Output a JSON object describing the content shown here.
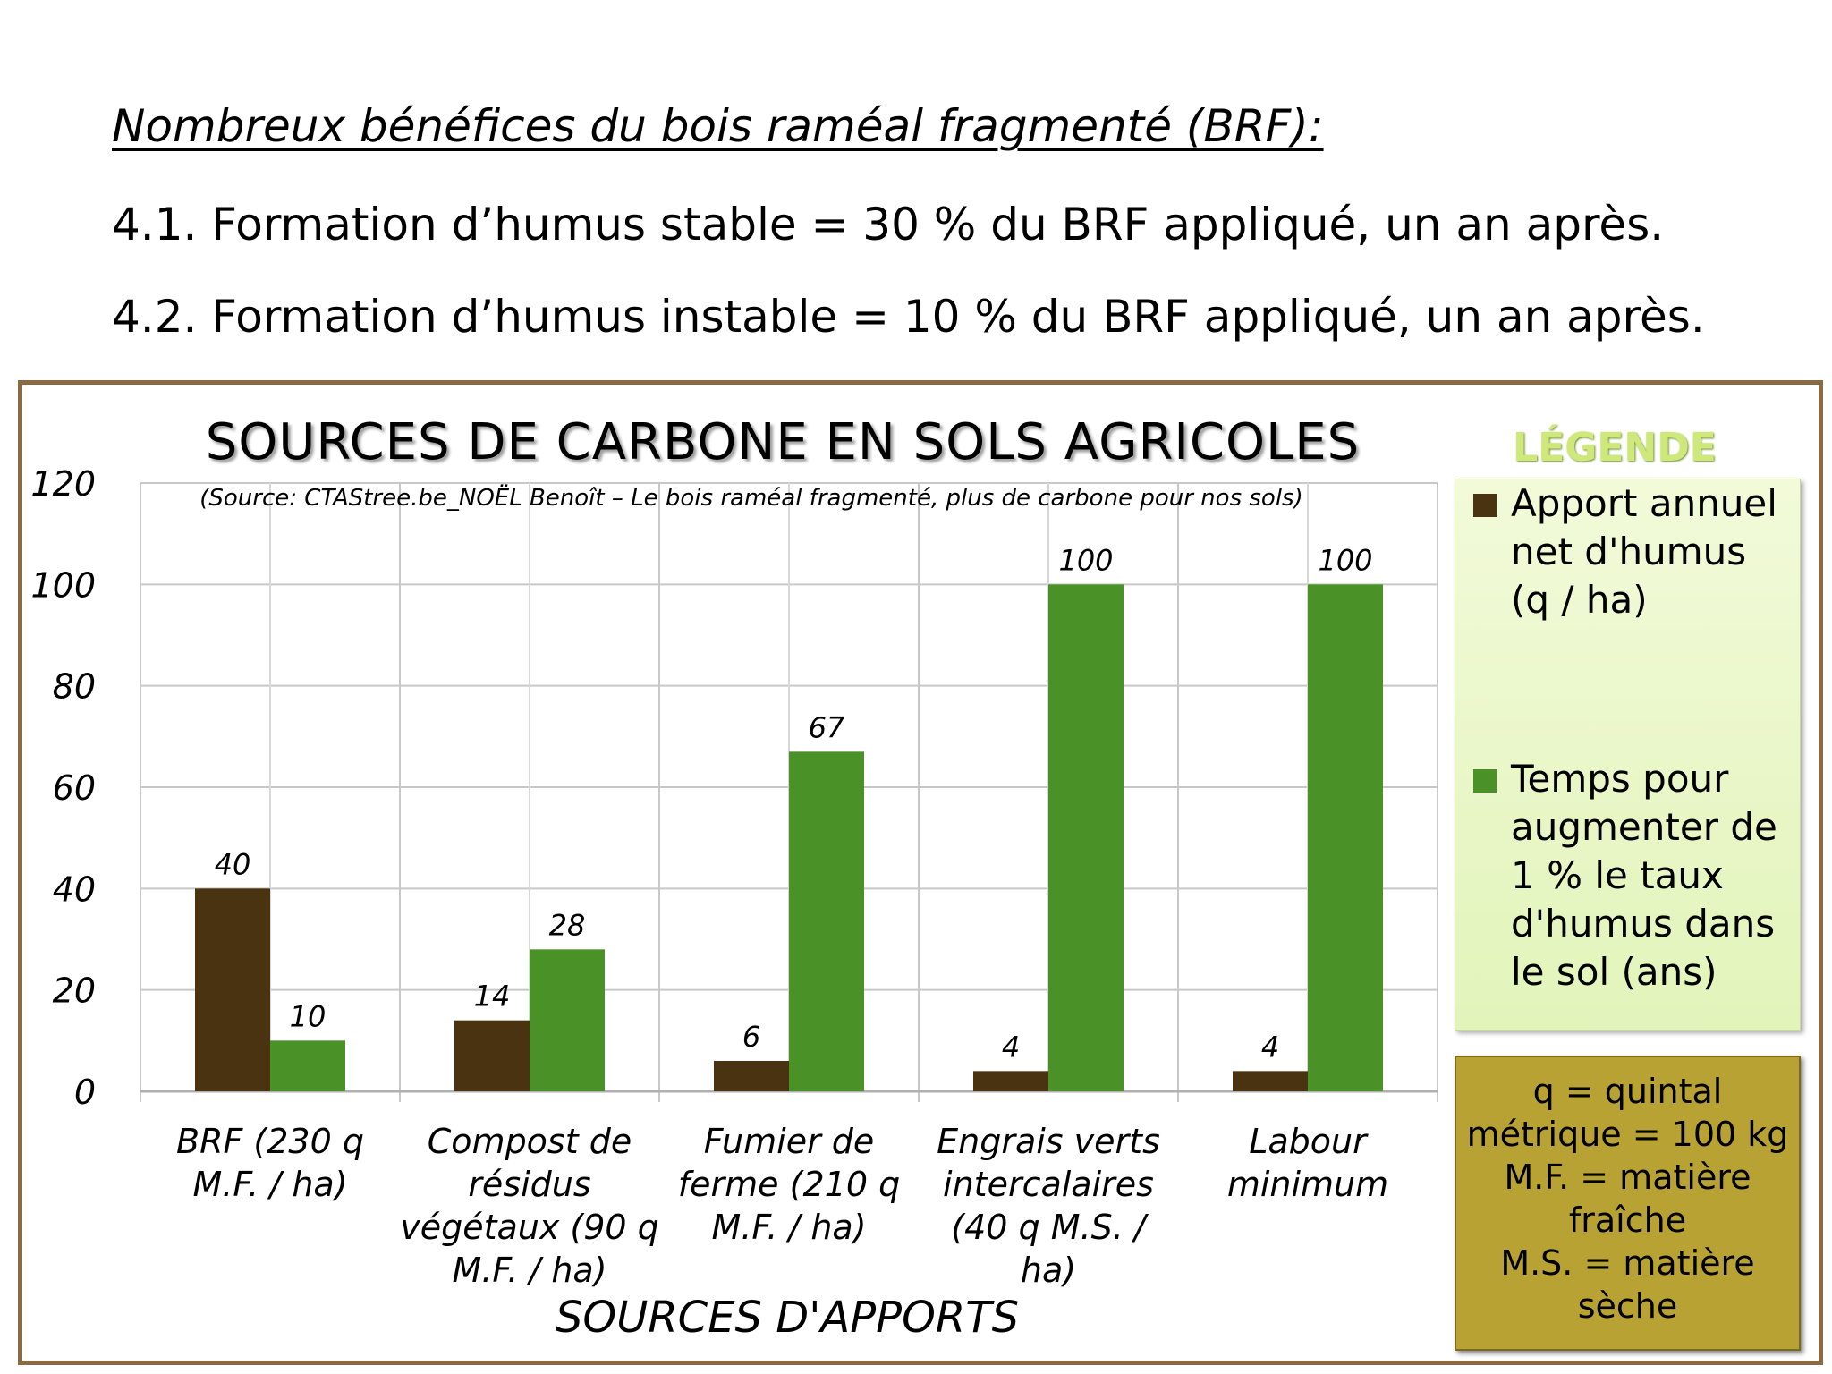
{
  "heading": "Nombreux bénéfices du bois raméal fragmenté (BRF):",
  "points": [
    "4.1. Formation d’humus stable = 30 % du BRF appliqué, un an après.",
    "4.2. Formation d’humus instable = 10 % du BRF appliqué, un an après."
  ],
  "chart_data": {
    "type": "bar",
    "title": "SOURCES DE CARBONE EN SOLS AGRICOLES",
    "subtitle": "(Source: CTAStree.be_NOËL Benoît – Le bois raméal fragmenté, plus de carbone pour nos sols)",
    "xlabel": "SOURCES D'APPORTS",
    "ylabel": "",
    "ylim": [
      0,
      120
    ],
    "yticks": [
      "0",
      "20",
      "40",
      "60",
      "80",
      "100",
      "120"
    ],
    "categories": [
      "BRF (230 q M.F. / ha)",
      "Compost de résidus végétaux (90 q M.F. / ha)",
      "Fumier de ferme (210 q M.F. / ha)",
      "Engrais verts intercalaires (40 q M.S. / ha)",
      "Labour minimum"
    ],
    "series": [
      {
        "name": "Apport annuel net d'humus (q / ha)",
        "color": "#4a3310",
        "values": [
          40,
          14,
          6,
          4,
          4
        ]
      },
      {
        "name": "Temps pour augmenter de 1 % le taux d'humus dans le sol (ans)",
        "color": "#4a9128",
        "values": [
          10,
          28,
          67,
          100,
          100
        ]
      }
    ],
    "grid": true,
    "legend_position": "right"
  },
  "legend": {
    "title": "LÉGENDE"
  },
  "notes": [
    "q = quintal",
    "métrique = 100 kg",
    "M.F. = matière",
    "fraîche",
    "M.S. = matière",
    "sèche"
  ]
}
